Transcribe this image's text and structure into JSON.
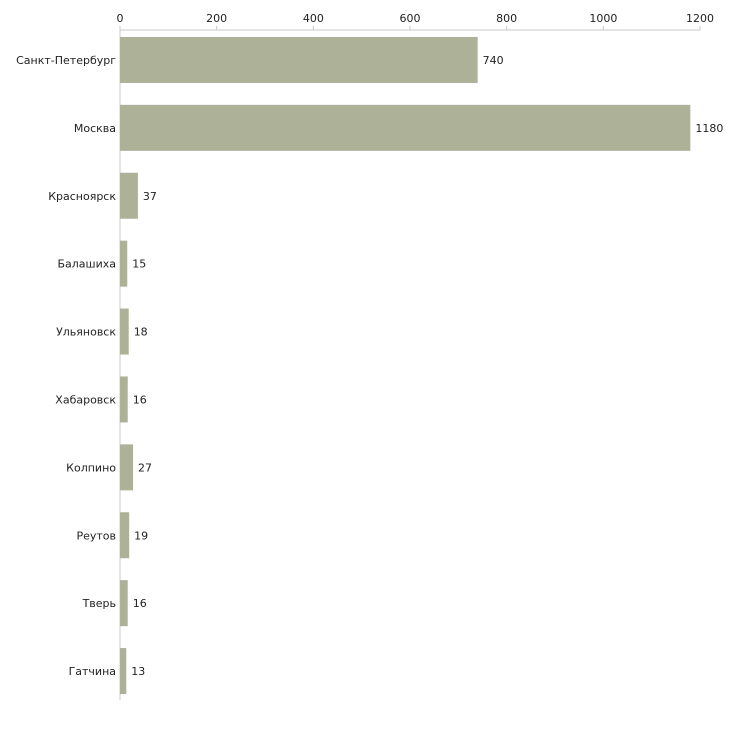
{
  "chart_data": {
    "type": "bar",
    "orientation": "horizontal",
    "title": "",
    "xlabel": "",
    "ylabel": "",
    "xlim": [
      0,
      1200
    ],
    "ticks": [
      0,
      200,
      400,
      600,
      800,
      1000,
      1200
    ],
    "tick_labels": [
      "0",
      "200",
      "400",
      "600",
      "800",
      "1000",
      "1200"
    ],
    "axis_position": "top",
    "grid": false,
    "categories": [
      "Санкт-Петербург",
      "Москва",
      "Красноярск",
      "Балашиха",
      "Ульяновск",
      "Хабаровск",
      "Колпино",
      "Реутов",
      "Тверь",
      "Гатчина"
    ],
    "values": [
      740,
      1180,
      37,
      15,
      18,
      16,
      27,
      19,
      16,
      13
    ],
    "value_labels": [
      "740",
      "1180",
      "37",
      "15",
      "18",
      "16",
      "27",
      "19",
      "16",
      "13"
    ],
    "bar_color": "#adb197"
  }
}
